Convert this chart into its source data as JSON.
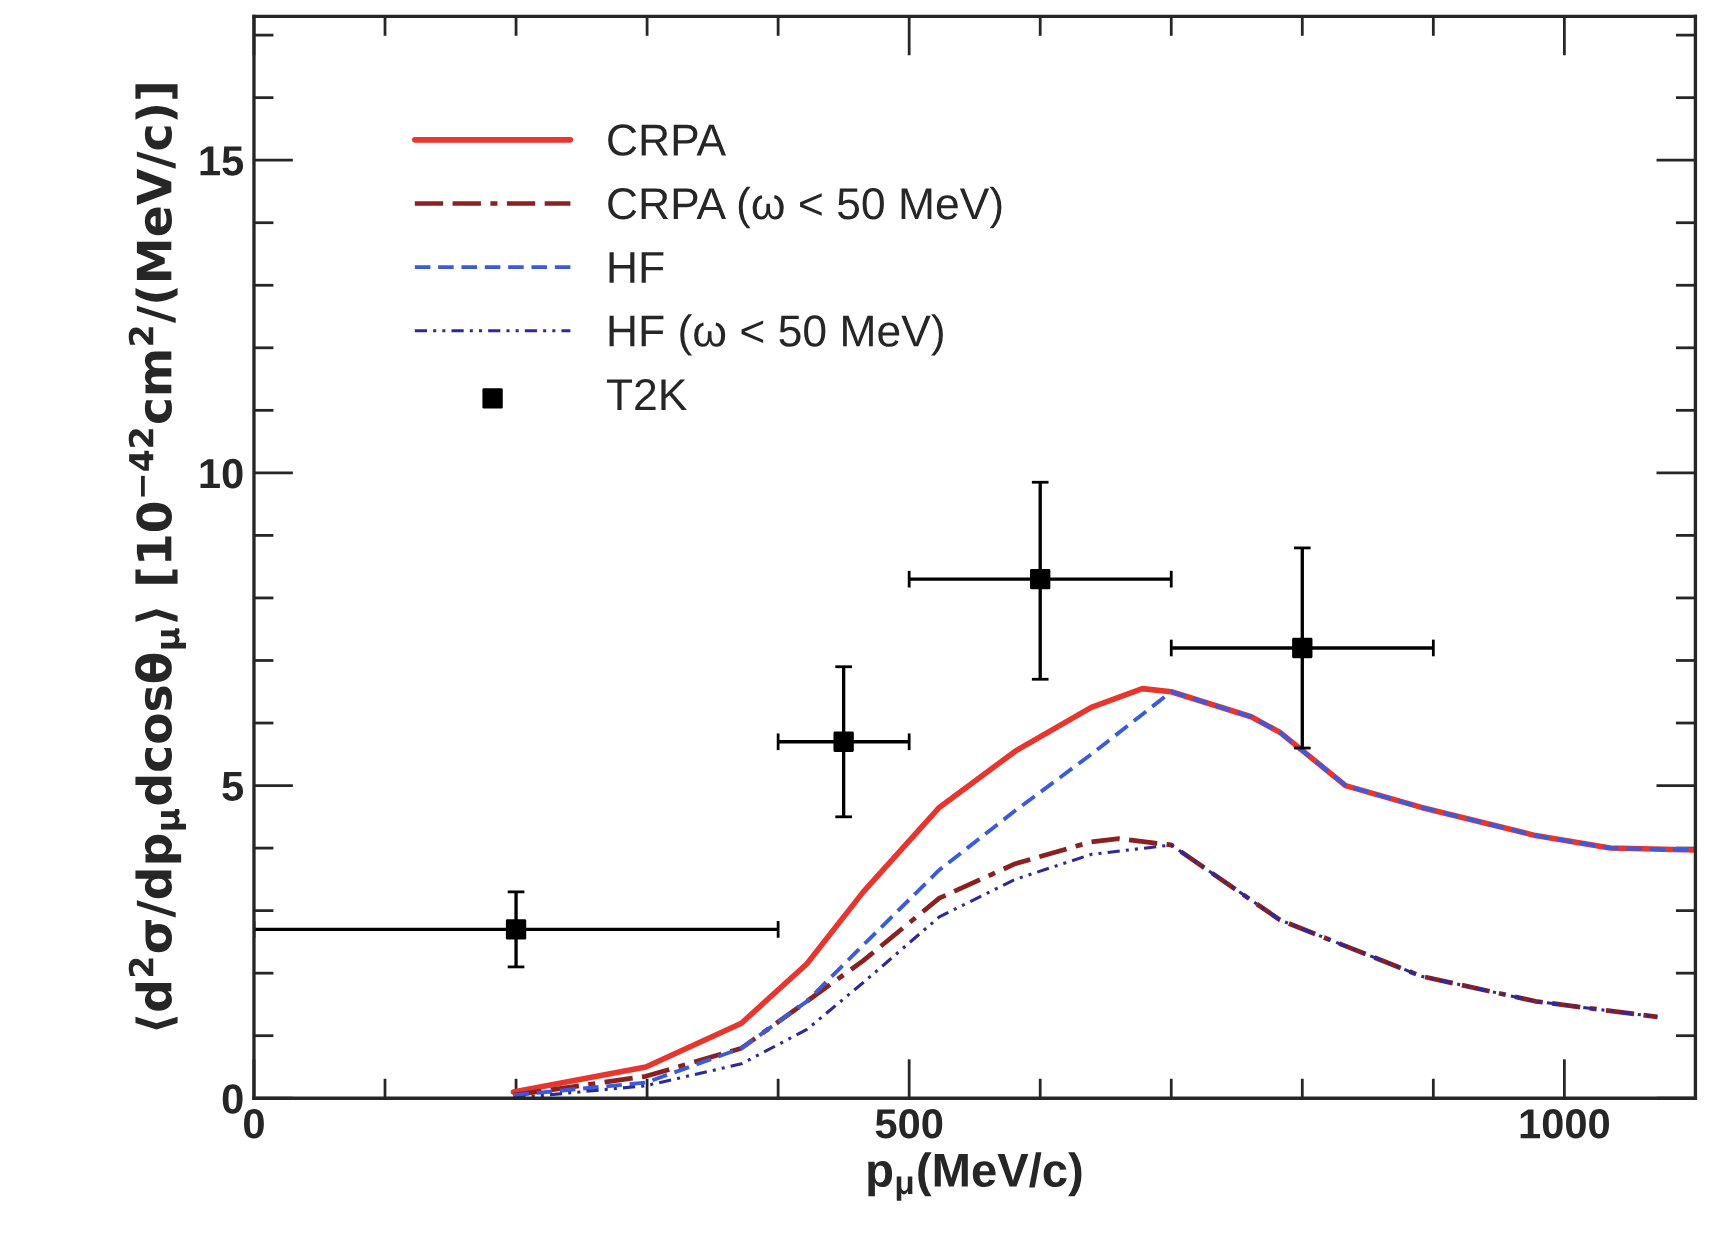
{
  "chart_data": {
    "type": "line",
    "xlabel": "p$_{μ}$(MeV/c)",
    "ylabel": "⟨d$^{2}$σ/dp$_{μ}$dcosθ$_{μ}$⟩ [10$^{−42}$cm$^{2}$/(MeV/c)]",
    "xlim": [
      0,
      1100
    ],
    "xticks": [
      0,
      500,
      1000
    ],
    "ylim": [
      0,
      17.3
    ],
    "yticks": [
      0,
      5,
      10,
      15
    ],
    "grid": false,
    "legend": "top left",
    "series": [
      {
        "name": "CRPA",
        "color": "#e8352e",
        "line_style": "solid",
        "marker": "none",
        "x": [
          198,
          299,
          372,
          422,
          465,
          523,
          581,
          639,
          678,
          700,
          761,
          783,
          833,
          891,
          978,
          1035,
          1100
        ],
        "values": [
          0.1,
          0.5,
          1.2,
          2.15,
          3.3,
          4.65,
          5.55,
          6.25,
          6.55,
          6.5,
          6.1,
          5.85,
          5.0,
          4.65,
          4.2,
          4.0,
          3.97
        ]
      },
      {
        "name": "CRPA (ω < 50 MeV)",
        "color": "#8b2020",
        "line_style": "longdash",
        "marker": "none",
        "x": [
          198,
          299,
          372,
          422,
          465,
          523,
          581,
          639,
          660,
          700,
          783,
          891,
          978,
          1071
        ],
        "values": [
          0.05,
          0.35,
          0.8,
          1.55,
          2.2,
          3.2,
          3.75,
          4.1,
          4.15,
          4.05,
          2.85,
          1.95,
          1.55,
          1.3
        ]
      },
      {
        "name": "HF",
        "color": "#3b5bdb",
        "line_style": "dashed",
        "marker": "none",
        "x": [
          198,
          299,
          372,
          422,
          465,
          523,
          581,
          639,
          700,
          761,
          783,
          833,
          891,
          978,
          1035,
          1100
        ],
        "values": [
          0.05,
          0.25,
          0.8,
          1.55,
          2.45,
          3.65,
          4.6,
          5.5,
          6.5,
          6.1,
          5.85,
          5.0,
          4.65,
          4.2,
          4.0,
          3.97
        ]
      },
      {
        "name": "HF (ω < 50 MeV)",
        "color": "#2a2a9a",
        "line_style": "dashdot",
        "marker": "none",
        "x": [
          198,
          299,
          372,
          422,
          465,
          523,
          581,
          639,
          700,
          783,
          891,
          978,
          1071
        ],
        "values": [
          0.0,
          0.2,
          0.55,
          1.1,
          1.85,
          2.9,
          3.5,
          3.9,
          4.05,
          2.85,
          1.95,
          1.55,
          1.3
        ]
      },
      {
        "name": "T2K",
        "type": "scatter",
        "color": "#000000",
        "marker": "square",
        "x": [
          200,
          450,
          600,
          800
        ],
        "values": [
          2.7,
          5.7,
          8.3,
          7.2
        ],
        "errors": [
          [
            2.1,
            3.3
          ],
          [
            4.5,
            6.9
          ],
          [
            6.7,
            9.85
          ],
          [
            5.6,
            8.8
          ]
        ],
        "xerrors": [
          [
            0,
            400
          ],
          [
            400,
            500
          ],
          [
            500,
            700
          ],
          [
            700,
            900
          ]
        ]
      }
    ]
  }
}
